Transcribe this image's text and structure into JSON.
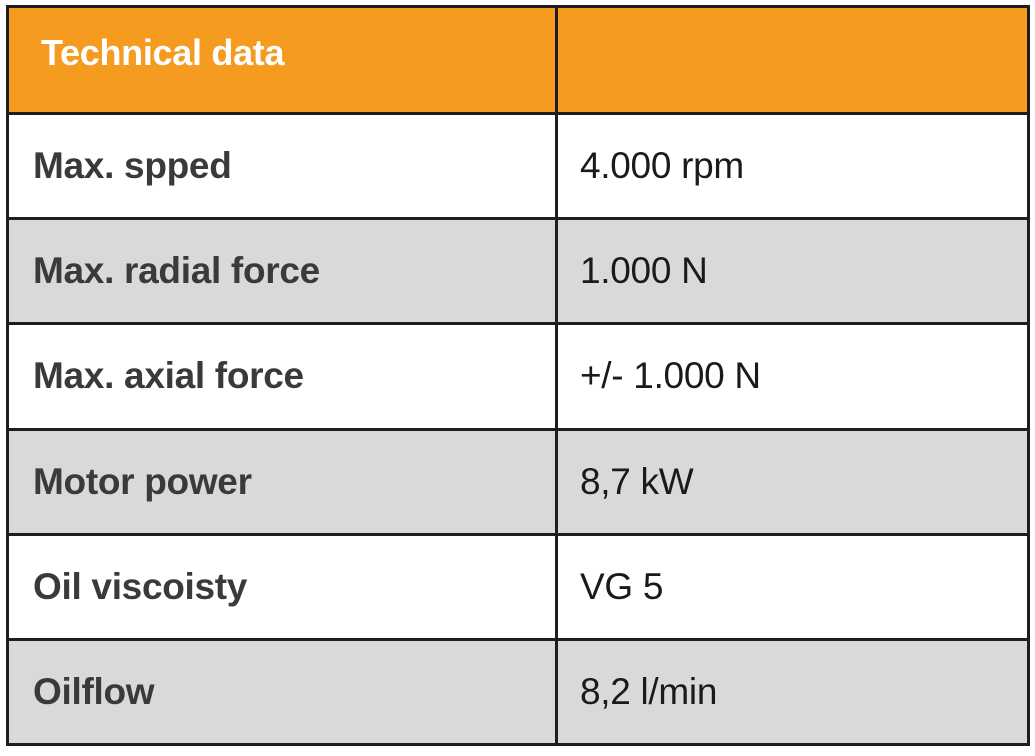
{
  "table": {
    "header": {
      "title": "Technical data",
      "second": ""
    },
    "rows": [
      {
        "label": "Max. spped",
        "value": "4.000 rpm"
      },
      {
        "label": "Max. radial force",
        "value": "1.000 N"
      },
      {
        "label": "Max. axial force",
        "value": "+/- 1.000 N"
      },
      {
        "label": "Motor power",
        "value": "8,7 kW"
      },
      {
        "label": "Oil viscoisty",
        "value": "VG 5"
      },
      {
        "label": "Oilflow",
        "value": "8,2 l/min"
      }
    ]
  },
  "colors": {
    "header_bg": "#f49b20",
    "header_text": "#ffffff",
    "alt_row_bg": "#d9d9d9",
    "row_bg": "#ffffff",
    "border": "#1e1e1e"
  }
}
